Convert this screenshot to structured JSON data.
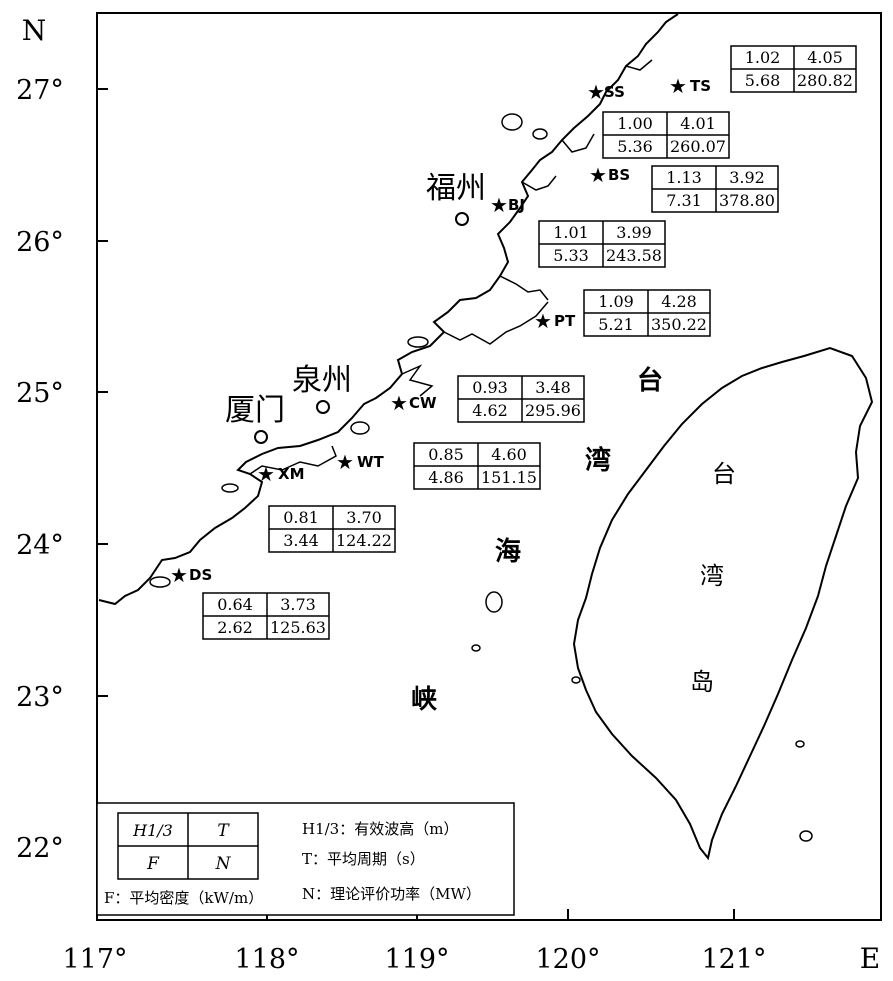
{
  "map": {
    "axis_labels": {
      "north": "N",
      "east": "E"
    },
    "lat_ticks": [
      {
        "label": "27°",
        "value": 27
      },
      {
        "label": "26°",
        "value": 26
      },
      {
        "label": "25°",
        "value": 25
      },
      {
        "label": "24°",
        "value": 24
      },
      {
        "label": "23°",
        "value": 23
      },
      {
        "label": "22°",
        "value": 22
      }
    ],
    "lon_ticks": [
      {
        "label": "117°",
        "value": 117
      },
      {
        "label": "118°",
        "value": 118
      },
      {
        "label": "119°",
        "value": 119
      },
      {
        "label": "120°",
        "value": 120
      },
      {
        "label": "121°",
        "value": 121
      }
    ],
    "cities": [
      {
        "name": "福州",
        "lon": 119.3,
        "lat": 26.08
      },
      {
        "name": "泉州",
        "lon": 118.59,
        "lat": 24.91
      },
      {
        "name": "厦门",
        "lon": 118.08,
        "lat": 24.7
      }
    ],
    "sea_labels": [
      "台",
      "湾",
      "海",
      "峡"
    ],
    "island_labels": [
      "台",
      "湾",
      "岛"
    ],
    "stations": [
      {
        "code": "TS",
        "H": "1.02",
        "T": "4.05",
        "F": "5.68",
        "N": "280.82"
      },
      {
        "code": "SS",
        "H": "1.00",
        "T": "4.01",
        "F": "5.36",
        "N": "260.07"
      },
      {
        "code": "BS",
        "H": "1.13",
        "T": "3.92",
        "F": "7.31",
        "N": "378.80"
      },
      {
        "code": "BJ",
        "H": "1.01",
        "T": "3.99",
        "F": "5.33",
        "N": "243.58"
      },
      {
        "code": "PT",
        "H": "1.09",
        "T": "4.28",
        "F": "5.21",
        "N": "350.22"
      },
      {
        "code": "CW",
        "H": "0.93",
        "T": "3.48",
        "F": "4.62",
        "N": "295.96"
      },
      {
        "code": "WT",
        "H": "0.85",
        "T": "4.60",
        "F": "4.86",
        "N": "151.15"
      },
      {
        "code": "XM",
        "H": "0.81",
        "T": "3.70",
        "F": "3.44",
        "N": "124.22"
      },
      {
        "code": "DS",
        "H": "0.64",
        "T": "3.73",
        "F": "2.62",
        "N": "125.63"
      }
    ],
    "legend": {
      "cells": [
        "H1/3",
        "T",
        "F",
        "N"
      ],
      "definitions": [
        "H1/3：有效波高（m）",
        "T：平均周期（s）",
        "N：理论评价功率（MW）"
      ],
      "f_definition": "F：平均密度（kW/m）"
    }
  }
}
